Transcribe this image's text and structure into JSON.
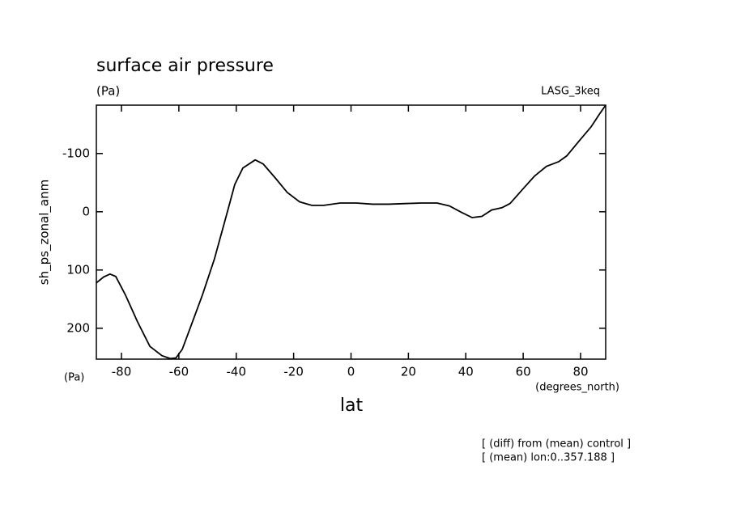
{
  "chart_data": {
    "type": "line",
    "title": "surface air pressure",
    "subtitle": "(Pa)",
    "top_right_label": "LASG_3keq",
    "y_label": "sh_ps_zonal_anm",
    "y_units": "(Pa)",
    "x_label": "lat",
    "x_units": "(degrees_north)",
    "notes": [
      "[ (diff) from (mean) control ]",
      "[ (mean) lon:0..357.188 ]"
    ],
    "y_inverted": true,
    "xlim": [
      -88.75,
      88.75
    ],
    "ylim": [
      -183,
      253
    ],
    "xticks": [
      -80,
      -60,
      -40,
      -20,
      0,
      20,
      40,
      60,
      80
    ],
    "yticks": [
      -100,
      0,
      100,
      200
    ],
    "x": [
      -88.75,
      -86.2,
      -84,
      -82,
      -78.6,
      -74.4,
      -70.1,
      -65.9,
      -63,
      -61,
      -58.8,
      -56,
      -51.8,
      -47.6,
      -43.3,
      -40.5,
      -37.7,
      -33.4,
      -30.6,
      -26.4,
      -22.2,
      -17.9,
      -13.7,
      -9.5,
      -3.8,
      1.8,
      7.5,
      13.1,
      18.8,
      24.4,
      30,
      34.3,
      38.5,
      42.2,
      45.6,
      49,
      52.6,
      55.4,
      59.7,
      63.9,
      68.1,
      72.4,
      75.2,
      79.4,
      83.7,
      86.5,
      88.75
    ],
    "series": [
      {
        "color": "#000000",
        "values": [
          122,
          112,
          107,
          111,
          143,
          189,
          231,
          247,
          252,
          251,
          236,
          199,
          143,
          81,
          4,
          -47,
          -75,
          -89,
          -82,
          -58,
          -33,
          -17,
          -11,
          -11,
          -15,
          -15,
          -13,
          -13,
          -14,
          -15,
          -15,
          -10,
          1,
          10,
          8,
          -3,
          -7,
          -14,
          -38,
          -61,
          -78,
          -86,
          -96,
          -121,
          -146,
          -167,
          -183
        ]
      }
    ]
  }
}
